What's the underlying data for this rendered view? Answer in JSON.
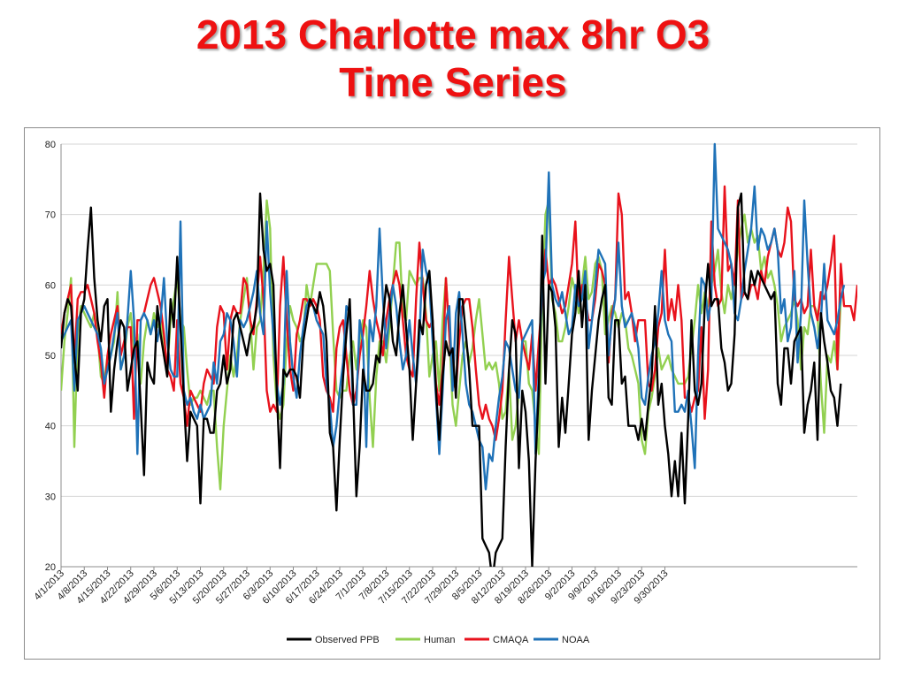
{
  "title_line1": "2013 Charlotte max 8hr O3",
  "title_line2": "Time Series",
  "chart_data": {
    "type": "line",
    "x_start": "4/1/2013",
    "x_end": "9/30/2013",
    "x_tick_labels": [
      "4/1/2013",
      "4/8/2013",
      "4/15/2013",
      "4/22/2013",
      "4/29/2013",
      "5/6/2013",
      "5/13/2013",
      "5/20/2013",
      "5/27/2013",
      "6/3/2013",
      "6/10/2013",
      "6/17/2013",
      "6/24/2013",
      "7/1/2013",
      "7/8/2013",
      "7/15/2013",
      "7/22/2013",
      "7/29/2013",
      "8/5/2013",
      "8/12/2013",
      "8/19/2013",
      "8/26/2013",
      "9/2/2013",
      "9/9/2013",
      "9/16/2013",
      "9/23/2013",
      "9/30/2013"
    ],
    "ylim": [
      20,
      80
    ],
    "y_ticks": [
      20,
      30,
      40,
      50,
      60,
      70,
      80
    ],
    "grid": true,
    "legend": "bottom",
    "series": [
      {
        "name": "Observed PPB",
        "color": "#000000",
        "values": [
          51,
          56,
          58,
          57,
          50,
          45,
          56,
          58,
          65,
          71,
          61,
          55,
          52,
          57,
          58,
          42,
          48,
          52,
          55,
          54,
          45,
          48,
          51,
          52,
          43,
          33,
          49,
          47,
          46,
          57,
          53,
          50,
          47,
          58,
          54,
          64,
          54,
          44,
          35,
          42,
          41,
          40,
          29,
          41,
          41,
          39,
          39,
          45,
          46,
          50,
          46,
          48,
          55,
          56,
          54,
          52,
          50,
          53,
          54,
          57,
          73,
          65,
          62,
          63,
          60,
          45,
          34,
          48,
          47,
          48,
          48,
          47,
          44,
          52,
          55,
          58,
          57,
          56,
          59,
          57,
          52,
          39,
          37,
          28,
          38,
          47,
          53,
          58,
          45,
          30,
          37,
          48,
          45,
          45,
          46,
          50,
          49,
          55,
          60,
          58,
          52,
          50,
          56,
          60,
          54,
          48,
          38,
          46,
          55,
          53,
          60,
          62,
          55,
          45,
          38,
          47,
          52,
          50,
          51,
          44,
          58,
          58,
          53,
          48,
          40,
          40,
          40,
          24,
          23,
          22,
          18,
          22,
          23,
          24,
          37,
          48,
          55,
          53,
          34,
          45,
          42,
          35,
          20,
          35,
          45,
          67,
          46,
          60,
          59,
          54,
          37,
          44,
          39,
          46,
          53,
          56,
          62,
          54,
          60,
          38,
          45,
          50,
          55,
          58,
          60,
          44,
          43,
          55,
          55,
          46,
          47,
          40,
          40,
          40,
          38,
          41,
          38,
          43,
          47,
          57,
          43,
          46,
          40,
          36,
          30,
          35,
          30,
          39,
          29,
          41,
          55,
          45,
          43,
          46,
          57,
          63,
          57,
          58,
          58,
          51,
          49,
          45,
          46,
          53,
          71,
          73,
          59,
          58,
          62,
          60,
          62,
          61,
          60,
          59,
          58,
          59,
          46,
          43,
          51,
          51,
          46,
          52,
          53,
          54,
          39,
          43,
          45,
          49,
          38,
          56,
          52,
          49,
          45,
          44,
          40,
          46
        ]
      },
      {
        "name": "Human",
        "color": "#92d050",
        "values": [
          45,
          52,
          56,
          61,
          37,
          53,
          57,
          56,
          55,
          54,
          56,
          53,
          47,
          46,
          50,
          50,
          52,
          59,
          48,
          50,
          54,
          56,
          51,
          53,
          46,
          52,
          55,
          53,
          56,
          54,
          55,
          50,
          48,
          55,
          58,
          61,
          55,
          54,
          48,
          43,
          44,
          44,
          45,
          44,
          43,
          45,
          45,
          37,
          31,
          40,
          45,
          50,
          47,
          50,
          55,
          58,
          61,
          55,
          48,
          54,
          55,
          62,
          72,
          68,
          50,
          43,
          41,
          43,
          52,
          57,
          55,
          54,
          52,
          53,
          60,
          57,
          60,
          63,
          63,
          63,
          63,
          62,
          53,
          45,
          44,
          45,
          45,
          50,
          52,
          48,
          52,
          55,
          54,
          44,
          37,
          47,
          52,
          52,
          49,
          54,
          60,
          66,
          66,
          56,
          55,
          62,
          61,
          60,
          61,
          61,
          56,
          47,
          50,
          52,
          45,
          55,
          61,
          53,
          43,
          40,
          45,
          50,
          52,
          49,
          51,
          55,
          58,
          53,
          48,
          49,
          48,
          49,
          46,
          41,
          42,
          48,
          38,
          40,
          45,
          52,
          52,
          46,
          45,
          40,
          36,
          58,
          70,
          72,
          58,
          56,
          52,
          52,
          54,
          57,
          61,
          59,
          56,
          60,
          64,
          58,
          59,
          63,
          64,
          62,
          53,
          55,
          57,
          56,
          54,
          56,
          55,
          51,
          50,
          48,
          46,
          38,
          36,
          42,
          44,
          47,
          51,
          48,
          49,
          50,
          48,
          47,
          46,
          46,
          46,
          47,
          51,
          55,
          60,
          56,
          59,
          57,
          60,
          62,
          65,
          59,
          56,
          60,
          58,
          61,
          65,
          68,
          70,
          66,
          68,
          66,
          67,
          62,
          64,
          61,
          62,
          60,
          57,
          52,
          54,
          55,
          56,
          58,
          55,
          48,
          54,
          53,
          57,
          57,
          56,
          46,
          39,
          50,
          49,
          52,
          48,
          58
        ]
      },
      {
        "name": "CMAQA",
        "color": "#e8121c",
        "values": [
          53,
          56,
          58,
          60,
          49,
          58,
          59,
          59,
          60,
          58,
          56,
          52,
          49,
          44,
          50,
          53,
          55,
          57,
          50,
          52,
          54,
          54,
          41,
          55,
          55,
          56,
          58,
          60,
          61,
          59,
          57,
          53,
          48,
          47,
          45,
          55,
          46,
          44,
          40,
          45,
          44,
          43,
          42,
          46,
          48,
          47,
          46,
          54,
          57,
          56,
          48,
          55,
          57,
          56,
          56,
          61,
          60,
          55,
          53,
          58,
          64,
          58,
          45,
          42,
          43,
          42,
          57,
          64,
          55,
          48,
          45,
          53,
          55,
          58,
          58,
          57,
          58,
          57,
          55,
          47,
          45,
          44,
          42,
          51,
          54,
          55,
          50,
          45,
          43,
          45,
          50,
          53,
          57,
          62,
          58,
          55,
          53,
          50,
          55,
          58,
          60,
          62,
          60,
          55,
          50,
          48,
          47,
          58,
          66,
          60,
          55,
          54,
          55,
          46,
          43,
          48,
          61,
          53,
          47,
          45,
          52,
          57,
          58,
          58,
          54,
          48,
          43,
          41,
          43,
          41,
          40,
          38,
          41,
          45,
          55,
          64,
          58,
          52,
          55,
          52,
          50,
          48,
          53,
          45,
          52,
          58,
          65,
          60,
          61,
          60,
          58,
          56,
          57,
          60,
          63,
          69,
          57,
          60,
          58,
          55,
          55,
          58,
          63,
          62,
          60,
          49,
          56,
          58,
          73,
          70,
          58,
          59,
          56,
          52,
          55,
          55,
          55,
          46,
          45,
          48,
          54,
          56,
          65,
          55,
          58,
          55,
          60,
          55,
          44,
          44,
          42,
          44,
          45,
          54,
          41,
          48,
          69,
          60,
          57,
          58,
          74,
          62,
          63,
          60,
          72,
          58,
          59,
          58,
          60,
          60,
          58,
          62,
          60,
          64,
          66,
          68,
          65,
          64,
          66,
          71,
          69,
          58,
          57,
          58,
          56,
          57,
          65,
          57,
          55,
          59,
          58,
          60,
          63,
          67,
          48,
          63,
          57,
          57,
          57,
          55,
          60
        ]
      },
      {
        "name": "NOAA",
        "color": "#1f72b8",
        "values": [
          52,
          53,
          54,
          55,
          45,
          55,
          56,
          57,
          56,
          55,
          54,
          53,
          51,
          46,
          48,
          50,
          53,
          56,
          48,
          50,
          55,
          62,
          55,
          36,
          55,
          56,
          55,
          53,
          55,
          52,
          55,
          61,
          52,
          48,
          47,
          47,
          69,
          45,
          43,
          44,
          42,
          41,
          43,
          41,
          42,
          43,
          49,
          46,
          52,
          53,
          56,
          55,
          52,
          47,
          55,
          54,
          55,
          57,
          59,
          62,
          56,
          53,
          69,
          59,
          53,
          46,
          43,
          46,
          62,
          52,
          47,
          44,
          50,
          54,
          57,
          58,
          57,
          55,
          54,
          53,
          46,
          43,
          37,
          40,
          45,
          49,
          57,
          56,
          43,
          43,
          55,
          52,
          37,
          55,
          52,
          57,
          68,
          58,
          51,
          56,
          60,
          57,
          52,
          48,
          50,
          55,
          50,
          46,
          52,
          65,
          62,
          60,
          52,
          44,
          36,
          45,
          55,
          57,
          45,
          56,
          59,
          53,
          46,
          43,
          42,
          40,
          38,
          37,
          31,
          36,
          35,
          40,
          44,
          47,
          52,
          51,
          48,
          45,
          44,
          52,
          53,
          54,
          55,
          36,
          48,
          60,
          62,
          76,
          60,
          58,
          57,
          59,
          56,
          53,
          54,
          60,
          57,
          58,
          62,
          51,
          55,
          60,
          65,
          64,
          63,
          50,
          55,
          58,
          66,
          57,
          54,
          55,
          56,
          54,
          51,
          44,
          43,
          47,
          50,
          52,
          56,
          62,
          55,
          53,
          52,
          42,
          42,
          43,
          42,
          45,
          40,
          34,
          50,
          61,
          60,
          55,
          58,
          80,
          68,
          67,
          66,
          65,
          63,
          56,
          55,
          58,
          62,
          65,
          68,
          74,
          65,
          68,
          67,
          65,
          66,
          68,
          65,
          56,
          58,
          52,
          54,
          62,
          49,
          56,
          72,
          63,
          56,
          54,
          51,
          55,
          63,
          55,
          54,
          53,
          55,
          58,
          60
        ]
      }
    ]
  }
}
